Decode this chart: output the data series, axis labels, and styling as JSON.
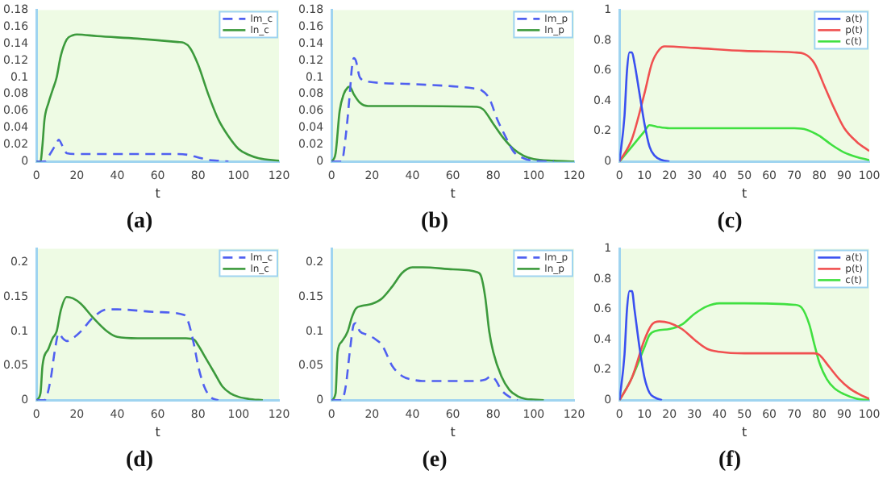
{
  "chart_data": [
    {
      "type": "line",
      "title": "(a)",
      "xlabel": "t",
      "xlim": [
        0,
        120
      ],
      "xticks": [
        0,
        20,
        40,
        60,
        80,
        100,
        120
      ],
      "ylim": [
        0,
        0.18
      ],
      "yticks": [
        0,
        0.02,
        0.04,
        0.06,
        0.08,
        0.1,
        0.12,
        0.14,
        0.16,
        0.18
      ],
      "grid": false,
      "legend": "top right",
      "marker": "none",
      "series": [
        {
          "name": "lm_c",
          "color": "#5060f0",
          "line_style": "dashed",
          "x": [
            0,
            4,
            7,
            10,
            11,
            13,
            15,
            20,
            40,
            70,
            75,
            80,
            85,
            90,
            95
          ],
          "values": [
            0,
            0,
            0.01,
            0.022,
            0.026,
            0.018,
            0.01,
            0.009,
            0.009,
            0.009,
            0.008,
            0.005,
            0.002,
            0.001,
            0
          ]
        },
        {
          "name": "ln_c",
          "color": "#3c9a3c",
          "line_style": "solid",
          "x": [
            0,
            2,
            3,
            4,
            6,
            8,
            10,
            12,
            15,
            18,
            20,
            30,
            50,
            70,
            73,
            76,
            80,
            85,
            90,
            95,
            100,
            105,
            110,
            120
          ],
          "values": [
            0,
            0,
            0.02,
            0.05,
            0.07,
            0.085,
            0.1,
            0.125,
            0.145,
            0.15,
            0.151,
            0.149,
            0.146,
            0.142,
            0.141,
            0.135,
            0.115,
            0.08,
            0.05,
            0.03,
            0.015,
            0.008,
            0.004,
            0.001
          ]
        }
      ]
    },
    {
      "type": "line",
      "title": "(b)",
      "xlabel": "t",
      "xlim": [
        0,
        120
      ],
      "xticks": [
        0,
        20,
        40,
        60,
        80,
        100,
        120
      ],
      "ylim": [
        0,
        0.18
      ],
      "yticks": [
        0,
        0.02,
        0.04,
        0.06,
        0.08,
        0.1,
        0.12,
        0.14,
        0.16,
        0.18
      ],
      "grid": false,
      "legend": "top right",
      "marker": "none",
      "series": [
        {
          "name": "lm_p",
          "color": "#5060f0",
          "line_style": "dashed",
          "x": [
            0,
            5,
            7,
            9,
            10,
            11,
            12,
            14,
            18,
            40,
            70,
            74,
            78,
            82,
            86,
            90,
            95,
            100,
            110
          ],
          "values": [
            0,
            0,
            0.03,
            0.08,
            0.11,
            0.123,
            0.12,
            0.1,
            0.095,
            0.092,
            0.087,
            0.085,
            0.075,
            0.05,
            0.03,
            0.012,
            0.004,
            0.001,
            0
          ]
        },
        {
          "name": "ln_p",
          "color": "#3c9a3c",
          "line_style": "solid",
          "x": [
            0,
            2,
            4,
            6,
            8,
            9,
            11,
            14,
            18,
            40,
            72,
            75,
            80,
            85,
            90,
            95,
            100,
            110,
            120
          ],
          "values": [
            0,
            0.01,
            0.06,
            0.08,
            0.088,
            0.089,
            0.08,
            0.07,
            0.066,
            0.066,
            0.065,
            0.062,
            0.045,
            0.028,
            0.015,
            0.007,
            0.003,
            0.001,
            0
          ]
        }
      ]
    },
    {
      "type": "line",
      "title": "(c)",
      "xlabel": "t",
      "xlim": [
        0,
        100
      ],
      "xticks": [
        0,
        10,
        20,
        30,
        40,
        50,
        60,
        70,
        80,
        90,
        100
      ],
      "ylim": [
        0,
        1
      ],
      "yticks": [
        0,
        0.2,
        0.4,
        0.6,
        0.8,
        1
      ],
      "grid": false,
      "legend": "top right",
      "marker": "none",
      "series": [
        {
          "name": "a(t)",
          "color": "#3a50f0",
          "line_style": "solid",
          "x": [
            0,
            2,
            3,
            4,
            5,
            6,
            8,
            10,
            12,
            14,
            17,
            20
          ],
          "values": [
            0,
            0.3,
            0.6,
            0.72,
            0.72,
            0.65,
            0.45,
            0.25,
            0.1,
            0.04,
            0.01,
            0
          ]
        },
        {
          "name": "p(t)",
          "color": "#f05050",
          "line_style": "solid",
          "x": [
            0,
            5,
            10,
            13,
            16,
            18,
            30,
            50,
            70,
            74,
            78,
            82,
            86,
            90,
            95,
            100
          ],
          "values": [
            0,
            0.15,
            0.45,
            0.65,
            0.74,
            0.76,
            0.75,
            0.73,
            0.72,
            0.71,
            0.65,
            0.5,
            0.35,
            0.22,
            0.13,
            0.07
          ]
        },
        {
          "name": "c(t)",
          "color": "#40e040",
          "line_style": "solid",
          "x": [
            0,
            5,
            10,
            12,
            15,
            20,
            40,
            70,
            75,
            80,
            85,
            90,
            95,
            100
          ],
          "values": [
            0,
            0.1,
            0.2,
            0.24,
            0.23,
            0.22,
            0.22,
            0.22,
            0.21,
            0.17,
            0.11,
            0.06,
            0.03,
            0.01
          ]
        }
      ]
    },
    {
      "type": "line",
      "title": "(d)",
      "xlabel": "t",
      "xlim": [
        0,
        120
      ],
      "xticks": [
        0,
        20,
        40,
        60,
        80,
        100,
        120
      ],
      "ylim": [
        0,
        0.22
      ],
      "yticks": [
        0,
        0.05,
        0.1,
        0.15,
        0.2
      ],
      "grid": false,
      "legend": "top right",
      "marker": "none",
      "series": [
        {
          "name": "lm_c",
          "color": "#5060f0",
          "line_style": "dashed",
          "x": [
            0,
            4,
            7,
            9,
            11,
            13,
            15,
            18,
            22,
            28,
            35,
            40,
            60,
            73,
            75,
            78,
            80,
            83,
            86,
            90
          ],
          "values": [
            0,
            0,
            0.03,
            0.07,
            0.097,
            0.09,
            0.086,
            0.09,
            0.1,
            0.12,
            0.132,
            0.132,
            0.128,
            0.124,
            0.115,
            0.08,
            0.05,
            0.02,
            0.005,
            0
          ]
        },
        {
          "name": "ln_c",
          "color": "#3c9a3c",
          "line_style": "solid",
          "x": [
            0,
            2,
            3,
            6,
            8,
            10,
            12,
            15,
            18,
            22,
            28,
            35,
            40,
            50,
            74,
            78,
            80,
            84,
            88,
            92,
            96,
            100,
            105,
            112
          ],
          "values": [
            0,
            0.01,
            0.05,
            0.075,
            0.09,
            0.1,
            0.13,
            0.15,
            0.148,
            0.14,
            0.12,
            0.1,
            0.092,
            0.09,
            0.09,
            0.088,
            0.08,
            0.06,
            0.04,
            0.02,
            0.01,
            0.005,
            0.002,
            0
          ]
        }
      ]
    },
    {
      "type": "line",
      "title": "(e)",
      "xlabel": "t",
      "xlim": [
        0,
        120
      ],
      "xticks": [
        0,
        20,
        40,
        60,
        80,
        100,
        120
      ],
      "ylim": [
        0,
        0.22
      ],
      "yticks": [
        0,
        0.05,
        0.1,
        0.15,
        0.2
      ],
      "grid": false,
      "legend": "top right",
      "marker": "none",
      "series": [
        {
          "name": "lm_p",
          "color": "#5060f0",
          "line_style": "dashed",
          "x": [
            0,
            5,
            7,
            9,
            11,
            12,
            14,
            18,
            22,
            25,
            30,
            35,
            40,
            45,
            70,
            76,
            79,
            81,
            84,
            88,
            92
          ],
          "values": [
            0,
            0,
            0.02,
            0.07,
            0.11,
            0.112,
            0.1,
            0.095,
            0.088,
            0.08,
            0.05,
            0.035,
            0.03,
            0.028,
            0.028,
            0.03,
            0.035,
            0.03,
            0.015,
            0.005,
            0
          ]
        },
        {
          "name": "ln_p",
          "color": "#3c9a3c",
          "line_style": "solid",
          "x": [
            0,
            2,
            3,
            5,
            8,
            10,
            12,
            15,
            20,
            25,
            30,
            35,
            40,
            45,
            60,
            72,
            74,
            76,
            78,
            80,
            84,
            88,
            92,
            96,
            100,
            105
          ],
          "values": [
            0,
            0.01,
            0.07,
            0.085,
            0.1,
            0.12,
            0.133,
            0.137,
            0.14,
            0.148,
            0.165,
            0.185,
            0.193,
            0.193,
            0.19,
            0.186,
            0.18,
            0.15,
            0.1,
            0.07,
            0.035,
            0.015,
            0.006,
            0.002,
            0.001,
            0
          ]
        }
      ]
    },
    {
      "type": "line",
      "title": "(f)",
      "xlabel": "t",
      "xlim": [
        0,
        100
      ],
      "xticks": [
        0,
        10,
        20,
        30,
        40,
        50,
        60,
        70,
        80,
        90,
        100
      ],
      "ylim": [
        0,
        1
      ],
      "yticks": [
        0,
        0.2,
        0.4,
        0.6,
        0.8,
        1
      ],
      "grid": false,
      "legend": "top right",
      "marker": "none",
      "series": [
        {
          "name": "a(t)",
          "color": "#3a50f0",
          "line_style": "solid",
          "x": [
            0,
            2,
            3,
            4,
            5,
            6,
            8,
            10,
            12,
            14,
            17
          ],
          "values": [
            0,
            0.3,
            0.6,
            0.72,
            0.72,
            0.6,
            0.35,
            0.15,
            0.05,
            0.02,
            0
          ]
        },
        {
          "name": "p(t)",
          "color": "#f05050",
          "line_style": "solid",
          "x": [
            0,
            5,
            10,
            13,
            16,
            20,
            25,
            30,
            35,
            40,
            50,
            78,
            80,
            84,
            88,
            92,
            96,
            100
          ],
          "values": [
            0,
            0.15,
            0.4,
            0.5,
            0.52,
            0.51,
            0.47,
            0.4,
            0.34,
            0.32,
            0.31,
            0.31,
            0.3,
            0.22,
            0.14,
            0.08,
            0.04,
            0.01
          ]
        },
        {
          "name": "c(t)",
          "color": "#40e040",
          "line_style": "solid",
          "x": [
            0,
            5,
            10,
            12,
            15,
            20,
            25,
            30,
            35,
            40,
            50,
            70,
            73,
            76,
            78,
            80,
            83,
            86,
            90,
            95,
            100
          ],
          "values": [
            0,
            0.15,
            0.35,
            0.43,
            0.46,
            0.47,
            0.5,
            0.57,
            0.62,
            0.64,
            0.64,
            0.63,
            0.61,
            0.5,
            0.37,
            0.25,
            0.14,
            0.08,
            0.04,
            0.01,
            0
          ]
        }
      ]
    }
  ]
}
